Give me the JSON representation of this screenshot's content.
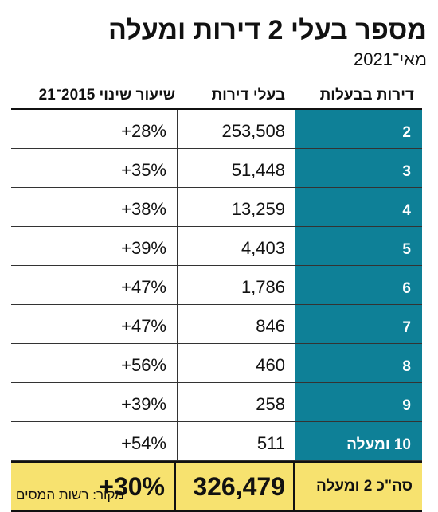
{
  "title": "מספר בעלי 2 דירות ומעלה",
  "subtitle": "מאי־2021",
  "source": "מקור: רשות המסים",
  "chart_data": {
    "type": "table",
    "columns": [
      "דירות בבעלות",
      "בעלי דירות",
      "שיעור שינוי 2015־21"
    ],
    "rows": [
      {
        "owned": "2",
        "owners": "253,508",
        "change": "+28%"
      },
      {
        "owned": "3",
        "owners": "51,448",
        "change": "+35%"
      },
      {
        "owned": "4",
        "owners": "13,259",
        "change": "+38%"
      },
      {
        "owned": "5",
        "owners": "4,403",
        "change": "+39%"
      },
      {
        "owned": "6",
        "owners": "1,786",
        "change": "+47%"
      },
      {
        "owned": "7",
        "owners": "846",
        "change": "+47%"
      },
      {
        "owned": "8",
        "owners": "460",
        "change": "+56%"
      },
      {
        "owned": "9",
        "owners": "258",
        "change": "+39%"
      },
      {
        "owned": "10 ומעלה",
        "owners": "511",
        "change": "+54%"
      }
    ],
    "total": {
      "label": "סה\"כ 2 ומעלה",
      "owners": "326,479",
      "change": "+30%"
    }
  },
  "colors": {
    "owned_column": "#0e8097",
    "total_row": "#f7e26f"
  }
}
